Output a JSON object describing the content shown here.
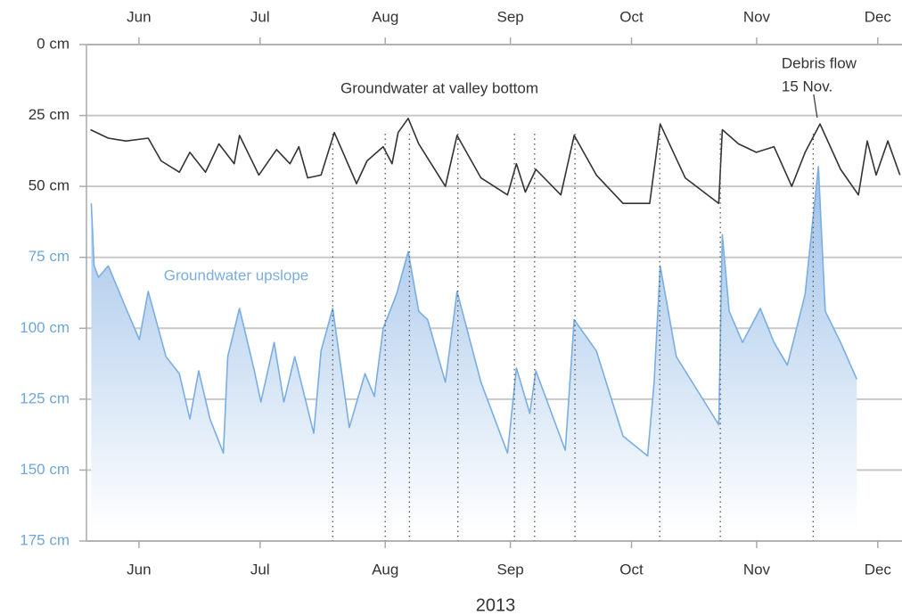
{
  "chart_data": {
    "type": "line",
    "xlabel": "2013",
    "xlim": [
      139,
      341
    ],
    "xticks": [
      {
        "value": 152,
        "label": "Jun"
      },
      {
        "value": 182,
        "label": "Jul"
      },
      {
        "value": 213,
        "label": "Aug"
      },
      {
        "value": 244,
        "label": "Sep"
      },
      {
        "value": 274,
        "label": "Oct"
      },
      {
        "value": 305,
        "label": "Nov"
      },
      {
        "value": 335,
        "label": "Dec"
      }
    ],
    "ylim": [
      0,
      175
    ],
    "y_inverted": true,
    "yticks": [
      {
        "value": 0,
        "label": "0 cm"
      },
      {
        "value": 25,
        "label": "25 cm"
      },
      {
        "value": 50,
        "label": "50 cm"
      },
      {
        "value": 75,
        "label": "75 cm"
      },
      {
        "value": 100,
        "label": "100 cm"
      },
      {
        "value": 125,
        "label": "125 cm"
      },
      {
        "value": 150,
        "label": "150 cm"
      },
      {
        "value": 175,
        "label": "175 cm"
      }
    ],
    "ytick_colors": [
      "#333333",
      "#333333",
      "#333333",
      "#6fa6da",
      "#6fa6da",
      "#6fa6da",
      "#6fa6da",
      "#6fa6da"
    ],
    "grid": true,
    "event_lines": [
      200,
      213,
      219,
      231,
      245,
      250,
      260,
      281,
      296,
      319
    ],
    "annotations": [
      {
        "lines": [
          "Debris flow",
          "15 Nov."
        ],
        "x": 320,
        "y": 27
      }
    ],
    "series": [
      {
        "name": "Groundwater at valley bottom",
        "color": "#333333",
        "area": false,
        "x": [
          140,
          144.4,
          148.8,
          154.3,
          157.5,
          162,
          164.6,
          168.5,
          171.8,
          175.6,
          176.9,
          181.7,
          186.1,
          189.4,
          191.6,
          193.8,
          197.1,
          200.4,
          205.9,
          208.5,
          212.5,
          214.7,
          216.2,
          218.7,
          221.3,
          227.9,
          230.8,
          236.7,
          243.3,
          245.5,
          247.7,
          250.3,
          256.5,
          259.8,
          265.3,
          271.9,
          278.5,
          281.1,
          287.3,
          295.6,
          296.5,
          300.5,
          304.9,
          309.3,
          313.7,
          317,
          320.7,
          325.8,
          330.2,
          332.4,
          334.6,
          337.5,
          340.5
        ],
        "values": [
          30,
          33,
          34,
          33,
          41,
          45,
          38,
          45,
          35,
          42,
          32,
          46,
          37,
          42,
          36,
          47,
          46,
          31,
          49,
          41,
          36,
          42,
          31,
          26,
          35,
          50,
          32,
          47,
          53,
          42,
          52,
          44,
          53,
          32,
          46,
          56,
          56,
          28,
          47,
          56,
          30,
          35,
          38,
          36,
          50,
          38,
          28,
          44,
          53,
          34,
          46,
          34,
          46
        ]
      },
      {
        "name": "Groundwater upslope",
        "color": "#7aaee0",
        "area": true,
        "x": [
          140.2,
          140.9,
          142,
          144.4,
          148.8,
          152.1,
          154.3,
          158.7,
          162,
          164.6,
          166.8,
          169.6,
          172.9,
          174,
          176.9,
          180.6,
          182.2,
          185.5,
          187.9,
          190.6,
          195.3,
          197.1,
          200,
          204.1,
          208,
          210.3,
          212.5,
          215.8,
          218.7,
          221.3,
          223.5,
          227.9,
          230.8,
          236.7,
          243.3,
          245.5,
          248.8,
          250.3,
          257.6,
          259.8,
          265.3,
          271.9,
          278,
          279.6,
          281.1,
          285.1,
          295.6,
          296.5,
          298.2,
          301.5,
          305.9,
          309.3,
          312.6,
          317,
          320.3,
          322,
          325.8,
          329.8
        ],
        "values": [
          56,
          78,
          82,
          78,
          93,
          104,
          87,
          110,
          116,
          132,
          115,
          132,
          144,
          110,
          93,
          115,
          126,
          105,
          126,
          110,
          137,
          108,
          93,
          135,
          116,
          124,
          100,
          88,
          73,
          94,
          97,
          119,
          87,
          119,
          144,
          114,
          130,
          115,
          143,
          97,
          108,
          138,
          145,
          119,
          78,
          110,
          134,
          67,
          94,
          105,
          93,
          105,
          113,
          88,
          43,
          94,
          105,
          118
        ]
      }
    ]
  }
}
